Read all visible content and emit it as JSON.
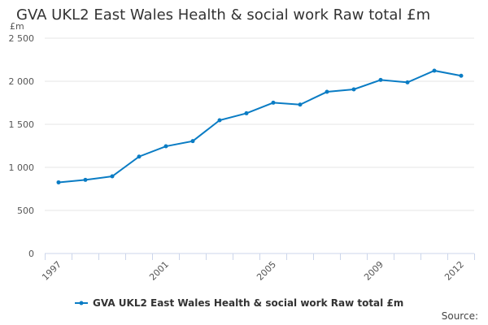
{
  "chart_data": {
    "type": "line",
    "title": "GVA UKL2 East Wales Health & social work Raw total £m",
    "ylabel": "£m",
    "xlabel": "",
    "x": [
      1997,
      1998,
      1999,
      2000,
      2001,
      2002,
      2003,
      2004,
      2005,
      2006,
      2007,
      2008,
      2009,
      2010,
      2011,
      2012
    ],
    "series": [
      {
        "name": "GVA UKL2 East Wales Health & social work Raw total £m",
        "values": [
          826,
          855,
          896,
          1125,
          1245,
          1305,
          1547,
          1628,
          1751,
          1729,
          1877,
          1906,
          2015,
          1987,
          2123,
          2064
        ],
        "color": "#0a7cc4"
      }
    ],
    "ylim": [
      0,
      2500
    ],
    "yticks": [
      0,
      500,
      1000,
      1500,
      2000,
      2500
    ],
    "ytick_labels": [
      "0",
      "500",
      "1 000",
      "1 500",
      "2 000",
      "2 500"
    ],
    "xtick_labels": [
      "1997",
      "2001",
      "2005",
      "2009",
      "2012"
    ],
    "grid": true,
    "legend": "bottom"
  },
  "source_label": "Source:"
}
